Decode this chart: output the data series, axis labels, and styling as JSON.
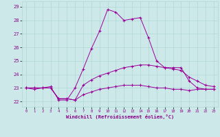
{
  "xlabel": "Windchill (Refroidissement éolien,°C)",
  "background_color": "#cce8e8",
  "line_color": "#990099",
  "ylim": [
    21.6,
    29.4
  ],
  "xlim": [
    -0.5,
    23.5
  ],
  "yticks": [
    22,
    23,
    24,
    25,
    26,
    27,
    28,
    29
  ],
  "xticks": [
    0,
    1,
    2,
    3,
    4,
    5,
    6,
    7,
    8,
    9,
    10,
    11,
    12,
    13,
    14,
    15,
    16,
    17,
    18,
    19,
    20,
    21,
    22,
    23
  ],
  "hours": [
    0,
    1,
    2,
    3,
    4,
    5,
    6,
    7,
    8,
    9,
    10,
    11,
    12,
    13,
    14,
    15,
    16,
    17,
    18,
    19,
    20,
    21,
    22,
    23
  ],
  "line1": [
    23.0,
    22.9,
    23.0,
    23.1,
    22.1,
    22.1,
    23.0,
    24.4,
    25.9,
    27.2,
    28.8,
    28.6,
    28.0,
    28.1,
    28.2,
    26.7,
    25.0,
    24.5,
    24.5,
    24.5,
    23.5,
    23.0,
    22.9,
    22.9
  ],
  "line2": [
    23.0,
    23.0,
    23.0,
    23.0,
    22.2,
    22.2,
    22.1,
    23.2,
    23.6,
    23.9,
    24.1,
    24.3,
    24.5,
    24.6,
    24.7,
    24.7,
    24.6,
    24.5,
    24.4,
    24.3,
    23.8,
    23.5,
    23.2,
    23.1
  ],
  "line3": [
    23.0,
    23.0,
    23.0,
    23.0,
    22.2,
    22.2,
    22.1,
    22.5,
    22.7,
    22.9,
    23.0,
    23.1,
    23.2,
    23.2,
    23.2,
    23.1,
    23.0,
    23.0,
    22.9,
    22.9,
    22.8,
    22.9,
    22.9,
    22.9
  ]
}
